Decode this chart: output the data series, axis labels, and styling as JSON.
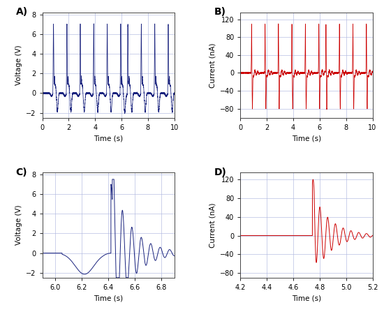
{
  "blue_color": "#1a237e",
  "red_color": "#cc0000",
  "bg_color": "#ffffff",
  "grid_color": "#b0b8e0",
  "panel_labels": [
    "A)",
    "B)",
    "C)",
    "D)"
  ],
  "A_xlim": [
    0,
    10
  ],
  "A_ylim": [
    -2.5,
    8.2
  ],
  "A_yticks": [
    -2,
    0,
    2,
    4,
    6,
    8
  ],
  "A_xticks": [
    0,
    2,
    4,
    6,
    8,
    10
  ],
  "A_xlabel": "Time (s)",
  "A_ylabel": "Voltage (V)",
  "B_xlim": [
    0,
    10
  ],
  "B_ylim": [
    -100,
    135
  ],
  "B_yticks": [
    -80,
    -40,
    0,
    40,
    80,
    120
  ],
  "B_xticks": [
    0,
    2,
    4,
    6,
    8,
    10
  ],
  "B_xlabel": "Time (s)",
  "B_ylabel": "Current (nA)",
  "C_xlim": [
    5.9,
    6.9
  ],
  "C_ylim": [
    -2.5,
    8.2
  ],
  "C_yticks": [
    -2,
    0,
    2,
    4,
    6,
    8
  ],
  "C_xticks": [
    6.0,
    6.2,
    6.4,
    6.6,
    6.8
  ],
  "C_xlabel": "Time (s)",
  "C_ylabel": "Voltage (V)",
  "D_xlim": [
    4.2,
    5.2
  ],
  "D_ylim": [
    -90,
    135
  ],
  "D_yticks": [
    -80,
    -40,
    0,
    40,
    80,
    120
  ],
  "D_xticks": [
    4.2,
    4.4,
    4.6,
    4.8,
    5.0,
    5.2
  ],
  "D_xlabel": "Time (s)",
  "D_ylabel": "Current (nA)"
}
